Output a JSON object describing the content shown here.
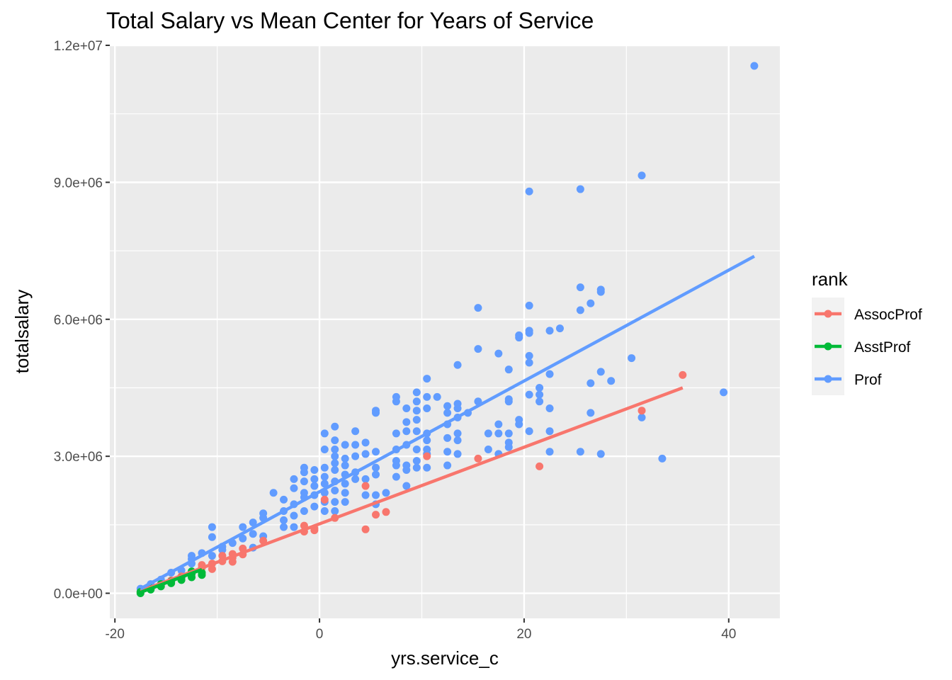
{
  "chart_data": {
    "type": "scatter",
    "title": "Total Salary vs Mean Center for Years of Service",
    "xlabel": "yrs.service_c",
    "ylabel": "totalsalary",
    "xlim": [
      -20.5,
      45
    ],
    "ylim": [
      -550000,
      12000000
    ],
    "x_ticks": [
      -20,
      0,
      20,
      40
    ],
    "x_tick_labels": [
      "-20",
      "0",
      "20",
      "40"
    ],
    "y_ticks": [
      0,
      3000000,
      6000000,
      9000000,
      12000000
    ],
    "y_tick_labels": [
      "0.0e+00",
      "3.0e+06",
      "6.0e+06",
      "9.0e+06",
      "1.2e+07"
    ],
    "grid": true,
    "legend": {
      "title": "rank",
      "position": "right"
    },
    "series": [
      {
        "name": "AssocProf",
        "color": "#F8766D",
        "points": [
          [
            -17.5,
            20000
          ],
          [
            -16.5,
            100000
          ],
          [
            -15.5,
            190000
          ],
          [
            -14.5,
            280000
          ],
          [
            -13.5,
            370000
          ],
          [
            -12.5,
            460000
          ],
          [
            -11.5,
            560000
          ],
          [
            -11.5,
            620000
          ],
          [
            -10.5,
            530000
          ],
          [
            -10.5,
            650000
          ],
          [
            -9.5,
            700000
          ],
          [
            -9.5,
            820000
          ],
          [
            -8.5,
            690000
          ],
          [
            -8.5,
            780000
          ],
          [
            -8.5,
            860000
          ],
          [
            -7.5,
            850000
          ],
          [
            -7.5,
            980000
          ],
          [
            -5.5,
            1150000
          ],
          [
            -1.5,
            1350000
          ],
          [
            -1.5,
            1480000
          ],
          [
            -0.5,
            1380000
          ],
          [
            -0.5,
            1420000
          ],
          [
            0.5,
            2050000
          ],
          [
            1.5,
            1650000
          ],
          [
            4.5,
            1400000
          ],
          [
            4.5,
            2350000
          ],
          [
            5.5,
            1720000
          ],
          [
            6.5,
            1780000
          ],
          [
            10.5,
            3000000
          ],
          [
            15.5,
            2950000
          ],
          [
            21.5,
            2780000
          ],
          [
            31.5,
            4000000
          ],
          [
            35.5,
            4780000
          ]
        ],
        "fit": [
          [
            -17.5,
            50000
          ],
          [
            35.5,
            4500000
          ]
        ]
      },
      {
        "name": "AsstProf",
        "color": "#00BA38",
        "points": [
          [
            -17.5,
            0
          ],
          [
            -17.5,
            30000
          ],
          [
            -16.5,
            80000
          ],
          [
            -16.5,
            110000
          ],
          [
            -15.5,
            150000
          ],
          [
            -15.5,
            200000
          ],
          [
            -14.5,
            220000
          ],
          [
            -14.5,
            260000
          ],
          [
            -13.5,
            290000
          ],
          [
            -13.5,
            340000
          ],
          [
            -12.5,
            350000
          ],
          [
            -12.5,
            420000
          ],
          [
            -12.5,
            480000
          ],
          [
            -11.5,
            400000
          ],
          [
            -11.5,
            450000
          ]
        ],
        "fit": [
          [
            -17.5,
            20000
          ],
          [
            -11.5,
            520000
          ]
        ]
      },
      {
        "name": "Prof",
        "color": "#619CFF",
        "points": [
          [
            -17.5,
            100000
          ],
          [
            -16.5,
            200000
          ],
          [
            -15.5,
            300000
          ],
          [
            -14.5,
            450000
          ],
          [
            -13.5,
            500000
          ],
          [
            -12.5,
            650000
          ],
          [
            -12.5,
            820000
          ],
          [
            -12.5,
            750000
          ],
          [
            -11.5,
            880000
          ],
          [
            -10.5,
            1450000
          ],
          [
            -10.5,
            1230000
          ],
          [
            -10.5,
            820000
          ],
          [
            -9.5,
            950000
          ],
          [
            -9.5,
            1020000
          ],
          [
            -8.5,
            1100000
          ],
          [
            -7.5,
            1450000
          ],
          [
            -7.5,
            1200000
          ],
          [
            -6.5,
            1300000
          ],
          [
            -6.5,
            1550000
          ],
          [
            -6.5,
            1000000
          ],
          [
            -5.5,
            1250000
          ],
          [
            -5.5,
            1750000
          ],
          [
            -5.5,
            1650000
          ],
          [
            -4.5,
            2200000
          ],
          [
            -3.5,
            1450000
          ],
          [
            -3.5,
            1600000
          ],
          [
            -3.5,
            1800000
          ],
          [
            -3.5,
            2050000
          ],
          [
            -2.5,
            1450000
          ],
          [
            -2.5,
            1700000
          ],
          [
            -2.5,
            1950000
          ],
          [
            -2.5,
            2300000
          ],
          [
            -2.5,
            2500000
          ],
          [
            -1.5,
            1800000
          ],
          [
            -1.5,
            2100000
          ],
          [
            -1.5,
            2200000
          ],
          [
            -1.5,
            2450000
          ],
          [
            -1.5,
            2650000
          ],
          [
            -1.5,
            2750000
          ],
          [
            -0.5,
            1900000
          ],
          [
            -0.5,
            2150000
          ],
          [
            -0.5,
            2350000
          ],
          [
            -0.5,
            2500000
          ],
          [
            -0.5,
            2700000
          ],
          [
            0.5,
            1800000
          ],
          [
            0.5,
            2000000
          ],
          [
            0.5,
            2200000
          ],
          [
            0.5,
            2400000
          ],
          [
            0.5,
            2550000
          ],
          [
            0.5,
            2750000
          ],
          [
            0.5,
            3150000
          ],
          [
            0.5,
            3500000
          ],
          [
            1.5,
            1800000
          ],
          [
            1.5,
            2000000
          ],
          [
            1.5,
            2250000
          ],
          [
            1.5,
            2450000
          ],
          [
            1.5,
            2700000
          ],
          [
            1.5,
            2850000
          ],
          [
            1.5,
            3000000
          ],
          [
            1.5,
            3150000
          ],
          [
            1.5,
            3350000
          ],
          [
            1.5,
            3650000
          ],
          [
            2.5,
            2000000
          ],
          [
            2.5,
            2200000
          ],
          [
            2.5,
            2400000
          ],
          [
            2.5,
            2600000
          ],
          [
            2.5,
            2800000
          ],
          [
            2.5,
            2950000
          ],
          [
            2.5,
            3250000
          ],
          [
            3.5,
            2500000
          ],
          [
            3.5,
            2650000
          ],
          [
            3.5,
            3000000
          ],
          [
            3.5,
            3250000
          ],
          [
            3.5,
            3550000
          ],
          [
            4.5,
            2150000
          ],
          [
            4.5,
            2500000
          ],
          [
            4.5,
            3050000
          ],
          [
            4.5,
            3300000
          ],
          [
            5.5,
            1950000
          ],
          [
            5.5,
            2150000
          ],
          [
            5.5,
            2600000
          ],
          [
            5.5,
            2750000
          ],
          [
            5.5,
            3100000
          ],
          [
            5.5,
            3950000
          ],
          [
            5.5,
            4000000
          ],
          [
            6.5,
            2200000
          ],
          [
            7.5,
            2550000
          ],
          [
            7.5,
            2800000
          ],
          [
            7.5,
            2900000
          ],
          [
            7.5,
            3150000
          ],
          [
            7.5,
            3500000
          ],
          [
            7.5,
            4200000
          ],
          [
            7.5,
            4300000
          ],
          [
            8.5,
            2350000
          ],
          [
            8.5,
            2700000
          ],
          [
            8.5,
            2800000
          ],
          [
            8.5,
            3250000
          ],
          [
            8.5,
            3550000
          ],
          [
            8.5,
            3750000
          ],
          [
            8.5,
            4050000
          ],
          [
            9.5,
            2750000
          ],
          [
            9.5,
            2900000
          ],
          [
            9.5,
            3150000
          ],
          [
            9.5,
            3550000
          ],
          [
            9.5,
            3800000
          ],
          [
            9.5,
            4000000
          ],
          [
            9.5,
            4200000
          ],
          [
            9.5,
            4400000
          ],
          [
            10.5,
            2750000
          ],
          [
            10.5,
            3050000
          ],
          [
            10.5,
            3150000
          ],
          [
            10.5,
            3350000
          ],
          [
            10.5,
            3500000
          ],
          [
            10.5,
            4050000
          ],
          [
            10.5,
            4300000
          ],
          [
            10.5,
            4700000
          ],
          [
            11.5,
            4300000
          ],
          [
            12.5,
            2800000
          ],
          [
            12.5,
            3100000
          ],
          [
            12.5,
            3400000
          ],
          [
            12.5,
            3700000
          ],
          [
            12.5,
            3950000
          ],
          [
            12.5,
            4100000
          ],
          [
            13.5,
            3050000
          ],
          [
            13.5,
            3350000
          ],
          [
            13.5,
            3500000
          ],
          [
            13.5,
            3850000
          ],
          [
            13.5,
            4050000
          ],
          [
            13.5,
            4150000
          ],
          [
            13.5,
            5000000
          ],
          [
            14.5,
            3950000
          ],
          [
            15.5,
            5350000
          ],
          [
            15.5,
            6250000
          ],
          [
            15.5,
            4200000
          ],
          [
            16.5,
            3150000
          ],
          [
            16.5,
            3500000
          ],
          [
            17.5,
            3050000
          ],
          [
            17.5,
            3500000
          ],
          [
            17.5,
            3700000
          ],
          [
            17.5,
            5250000
          ],
          [
            18.5,
            3200000
          ],
          [
            18.5,
            3300000
          ],
          [
            18.5,
            3500000
          ],
          [
            18.5,
            4200000
          ],
          [
            18.5,
            4250000
          ],
          [
            18.5,
            4900000
          ],
          [
            19.5,
            3800000
          ],
          [
            19.5,
            3700000
          ],
          [
            19.5,
            5600000
          ],
          [
            19.5,
            5650000
          ],
          [
            20.5,
            8800000
          ],
          [
            20.5,
            6300000
          ],
          [
            20.5,
            5750000
          ],
          [
            20.5,
            5700000
          ],
          [
            20.5,
            5200000
          ],
          [
            20.5,
            5050000
          ],
          [
            20.5,
            4350000
          ],
          [
            20.5,
            3550000
          ],
          [
            21.5,
            4500000
          ],
          [
            21.5,
            4350000
          ],
          [
            21.5,
            4200000
          ],
          [
            22.5,
            5750000
          ],
          [
            22.5,
            4800000
          ],
          [
            22.5,
            4050000
          ],
          [
            22.5,
            3550000
          ],
          [
            22.5,
            3100000
          ],
          [
            23.5,
            5800000
          ],
          [
            25.5,
            8850000
          ],
          [
            25.5,
            6700000
          ],
          [
            25.5,
            6200000
          ],
          [
            25.5,
            3100000
          ],
          [
            26.5,
            6350000
          ],
          [
            26.5,
            4600000
          ],
          [
            26.5,
            3950000
          ],
          [
            27.5,
            6650000
          ],
          [
            27.5,
            6600000
          ],
          [
            27.5,
            4850000
          ],
          [
            27.5,
            3050000
          ],
          [
            28.5,
            4650000
          ],
          [
            30.5,
            5150000
          ],
          [
            31.5,
            9150000
          ],
          [
            31.5,
            3850000
          ],
          [
            33.5,
            2950000
          ],
          [
            39.5,
            4400000
          ],
          [
            42.5,
            11550000
          ]
        ],
        "fit": [
          [
            -17.5,
            100000
          ],
          [
            42.5,
            7380000
          ]
        ]
      }
    ]
  }
}
